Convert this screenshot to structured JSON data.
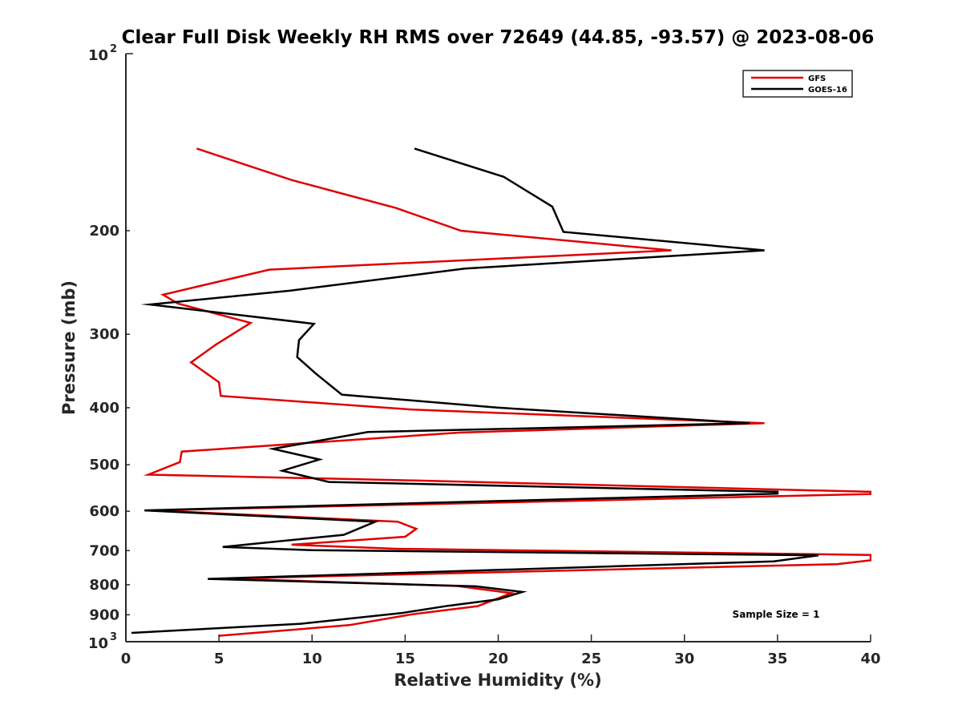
{
  "chart_data": {
    "type": "line",
    "title": "Clear Full Disk Weekly RH RMS over 72649 (44.85, -93.57) @ 2023-08-06",
    "xlabel": "Relative Humidity (%)",
    "ylabel": "Pressure (mb)",
    "xlim": [
      0,
      40
    ],
    "ylim": [
      100,
      1000
    ],
    "y_scale": "log",
    "y_reversed": true,
    "x_ticks": [
      0,
      5,
      10,
      15,
      20,
      25,
      30,
      35,
      40
    ],
    "x_tick_labels": [
      "0",
      "5",
      "10",
      "15",
      "20",
      "25",
      "30",
      "35",
      "40"
    ],
    "y_ticks": [
      200,
      300,
      400,
      500,
      600,
      700,
      800,
      900
    ],
    "y_tick_labels": [
      "200",
      "300",
      "400",
      "500",
      "600",
      "700",
      "800",
      "900"
    ],
    "y_end_labels": [
      {
        "value": 100,
        "base": "10",
        "exp": "2"
      },
      {
        "value": 1000,
        "base": "10",
        "exp": "3"
      }
    ],
    "grid": false,
    "legend_position": "top-right",
    "annotation": "Sample Size = 1",
    "series": [
      {
        "name": "GFS",
        "color": "#e00000",
        "x": [
          3.8,
          8.9,
          14.5,
          18,
          29.3,
          7.7,
          2,
          2.8,
          6.7,
          4.8,
          3.5,
          5,
          5.1,
          15.4,
          34.3,
          17.9,
          3,
          2.9,
          1.2,
          15.5,
          40,
          40,
          1.5,
          14.6,
          15.6,
          15,
          8.9,
          14.5,
          40,
          40,
          38.2,
          5.5,
          17.8,
          20.7,
          18.9,
          15.4,
          12,
          5
        ],
        "y": [
          145,
          164,
          183,
          200,
          216,
          233,
          257,
          266,
          287,
          313,
          335,
          362,
          382,
          403,
          425,
          441,
          475,
          495,
          520,
          532,
          556,
          561,
          598,
          625,
          643,
          663,
          684,
          695,
          712,
          727,
          738,
          781,
          804,
          827,
          870,
          898,
          937,
          977
        ]
      },
      {
        "name": "GOES-16",
        "color": "#000000",
        "x": [
          15.5,
          20.3,
          22.9,
          23.5,
          34.3,
          18.2,
          8.8,
          1.3,
          10.1,
          9.3,
          9.2,
          10.2,
          11.6,
          20,
          33.5,
          13,
          7.9,
          10.4,
          8.4,
          10.9,
          35,
          35,
          1,
          13.4,
          11.7,
          5.2,
          10,
          37.2,
          34.8,
          4.4,
          18.8,
          21.3,
          20,
          17.3,
          14.8,
          9.4,
          0.3
        ],
        "y": [
          145,
          162,
          182,
          201,
          216,
          232,
          253,
          267,
          288,
          307,
          328,
          350,
          380,
          400,
          425,
          440,
          470,
          490,
          512,
          535,
          556,
          560,
          598,
          625,
          658,
          690,
          699,
          713,
          730,
          782,
          805,
          823,
          847,
          869,
          894,
          932,
          966
        ]
      }
    ]
  }
}
